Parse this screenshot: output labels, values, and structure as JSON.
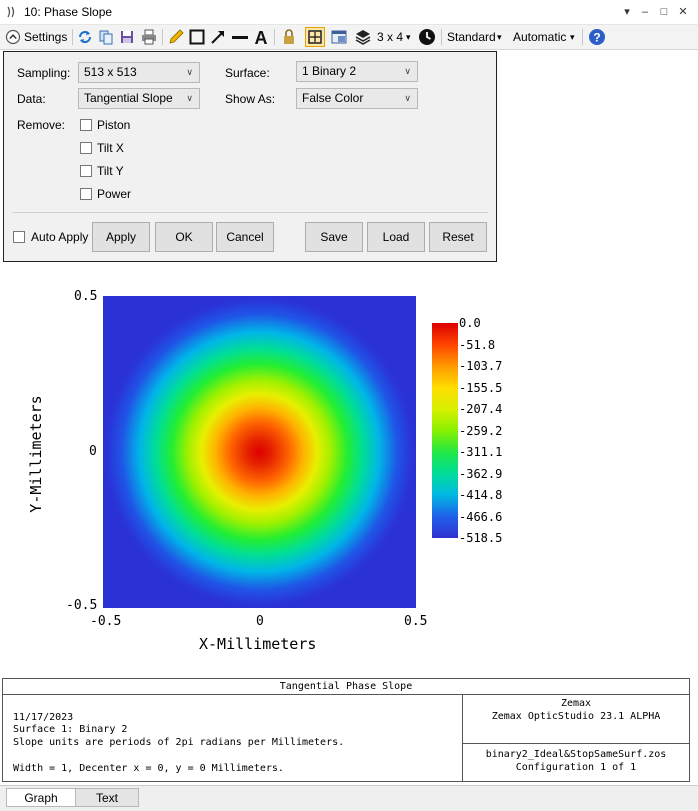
{
  "window": {
    "title": "10: Phase Slope",
    "controls": {
      "minimize": "‒",
      "restore": "□",
      "close": "✕",
      "menu": "▾"
    }
  },
  "toolbar": {
    "settings_label": "Settings",
    "layout_label": "3 x 4",
    "layout_chevron": "▾",
    "standard_label": "Standard",
    "standard_chevron": "▾",
    "automatic_label": "Automatic",
    "automatic_chevron": "▾",
    "icons": [
      "refresh-icon",
      "copy-icon",
      "save-icon",
      "print-icon",
      "pencil-icon",
      "rectangle-icon",
      "arrow-icon",
      "line-icon",
      "text-icon",
      "lock-icon",
      "fit-icon",
      "window-icon",
      "layers-icon",
      "clock-icon",
      "help-icon"
    ]
  },
  "settings": {
    "sampling_label": "Sampling:",
    "sampling_value": "513 x 513",
    "data_label": "Data:",
    "data_value": "Tangential Slope",
    "surface_label": "Surface:",
    "surface_value": "1 Binary 2",
    "showas_label": "Show As:",
    "showas_value": "False Color",
    "remove_label": "Remove:",
    "remove_options": [
      "Piston",
      "Tilt X",
      "Tilt Y",
      "Power"
    ],
    "auto_apply_label": "Auto Apply",
    "buttons": {
      "apply": "Apply",
      "ok": "OK",
      "cancel": "Cancel",
      "save": "Save",
      "load": "Load",
      "reset": "Reset"
    }
  },
  "chart_data": {
    "type": "heatmap",
    "xlabel": "X-Millimeters",
    "ylabel": "Y-Millimeters",
    "xlim": [
      -0.5,
      0.5
    ],
    "ylim": [
      -0.5,
      0.5
    ],
    "x_ticks": [
      "-0.5",
      "0",
      "0.5"
    ],
    "y_ticks": [
      "0.5",
      "0",
      "-0.5"
    ],
    "colorbar_ticks": [
      "0.0",
      "-51.8",
      "-103.7",
      "-155.5",
      "-207.4",
      "-259.2",
      "-311.1",
      "-362.9",
      "-414.8",
      "-466.6",
      "-518.5"
    ],
    "colormap": [
      "#dd0000",
      "#ff9900",
      "#ffdd00",
      "#88f000",
      "#00dd99",
      "#00b8e4",
      "#3030d0"
    ]
  },
  "info": {
    "title": "Tangential Phase Slope",
    "lines": [
      "11/17/2023",
      "Surface 1: Binary 2",
      "Slope units are periods of 2pi radians per Millimeters.",
      "",
      "Width = 1, Decenter x = 0, y = 0 Millimeters."
    ],
    "company": "Zemax",
    "product": "Zemax OpticStudio 23.1  ALPHA",
    "file": "binary2_Ideal&StopSameSurf.zos",
    "config": "Configuration 1 of 1"
  },
  "tabs": [
    "Graph",
    "Text"
  ]
}
